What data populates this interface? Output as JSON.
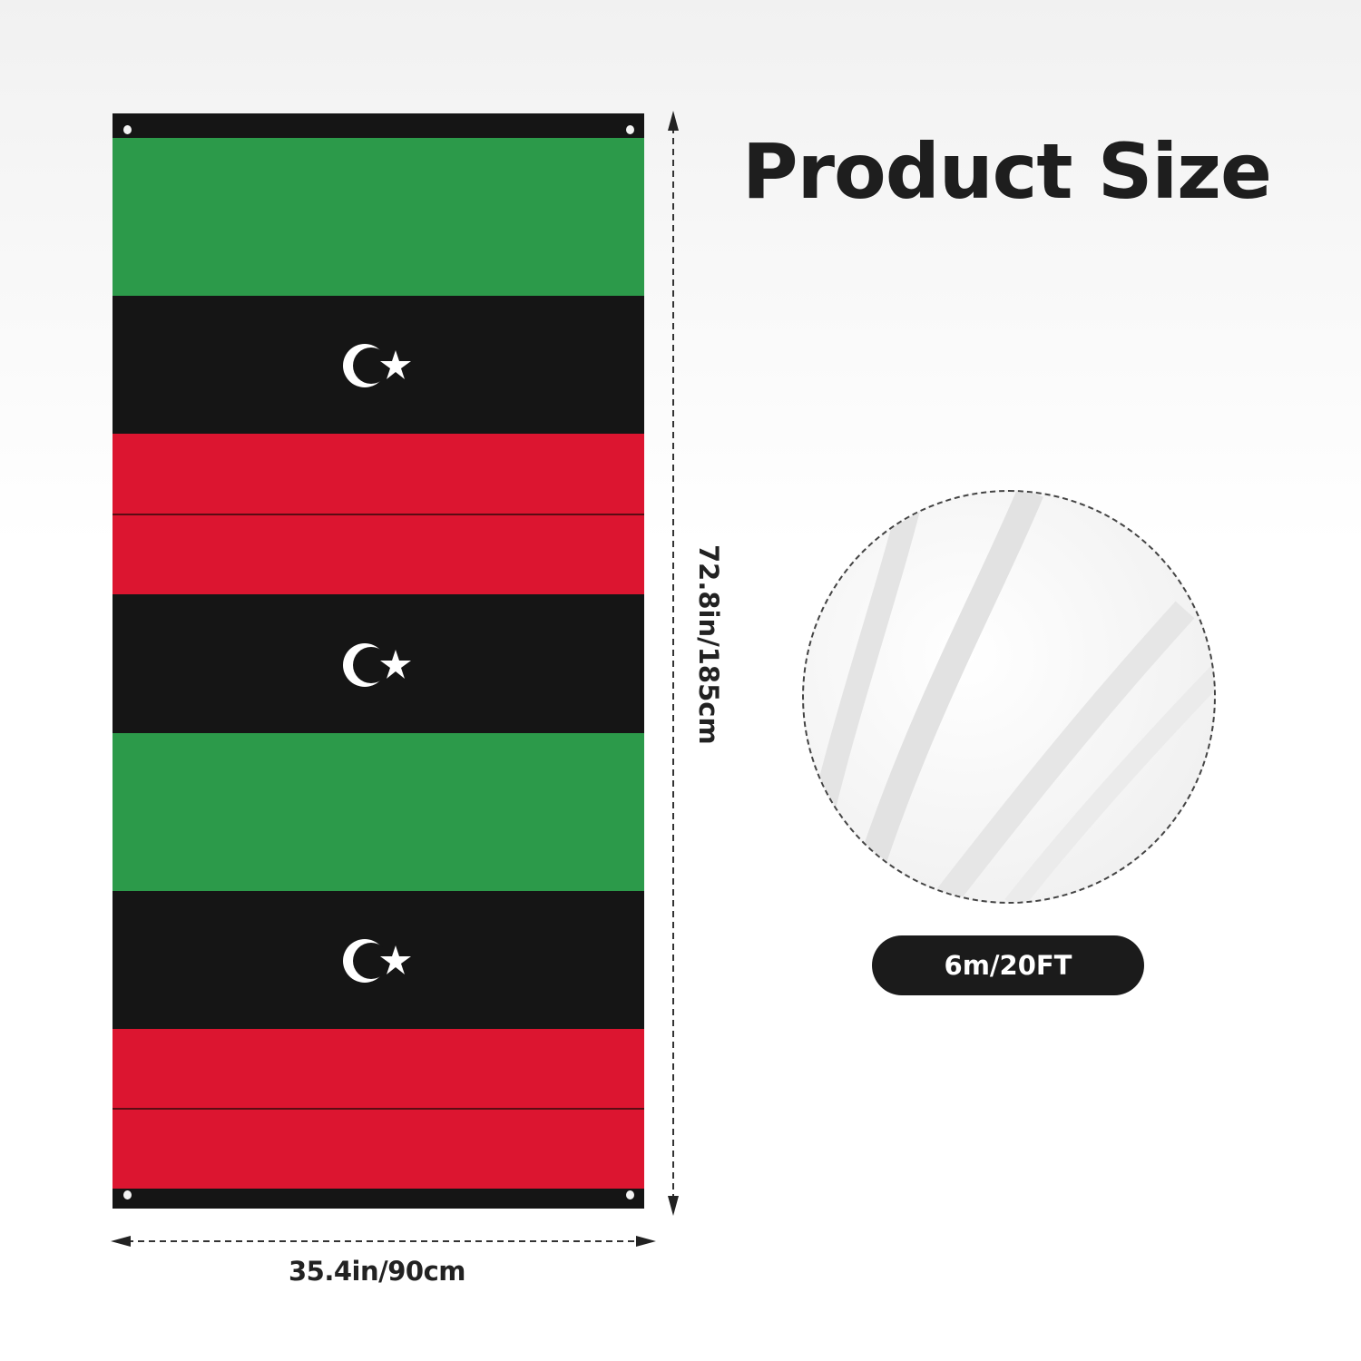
{
  "title": "Product Size",
  "dimensions": {
    "width_label": "35.4in/90cm",
    "height_label": "72.8in/185cm",
    "rope_length_label": "6m/20FT"
  },
  "flag": {
    "emblem": "crescent-star-icon",
    "colors": {
      "green": "#2c9a4a",
      "black": "#151515",
      "red": "#dc1530",
      "emblem": "#ffffff"
    }
  },
  "detail_image": "white-rope-closeup"
}
